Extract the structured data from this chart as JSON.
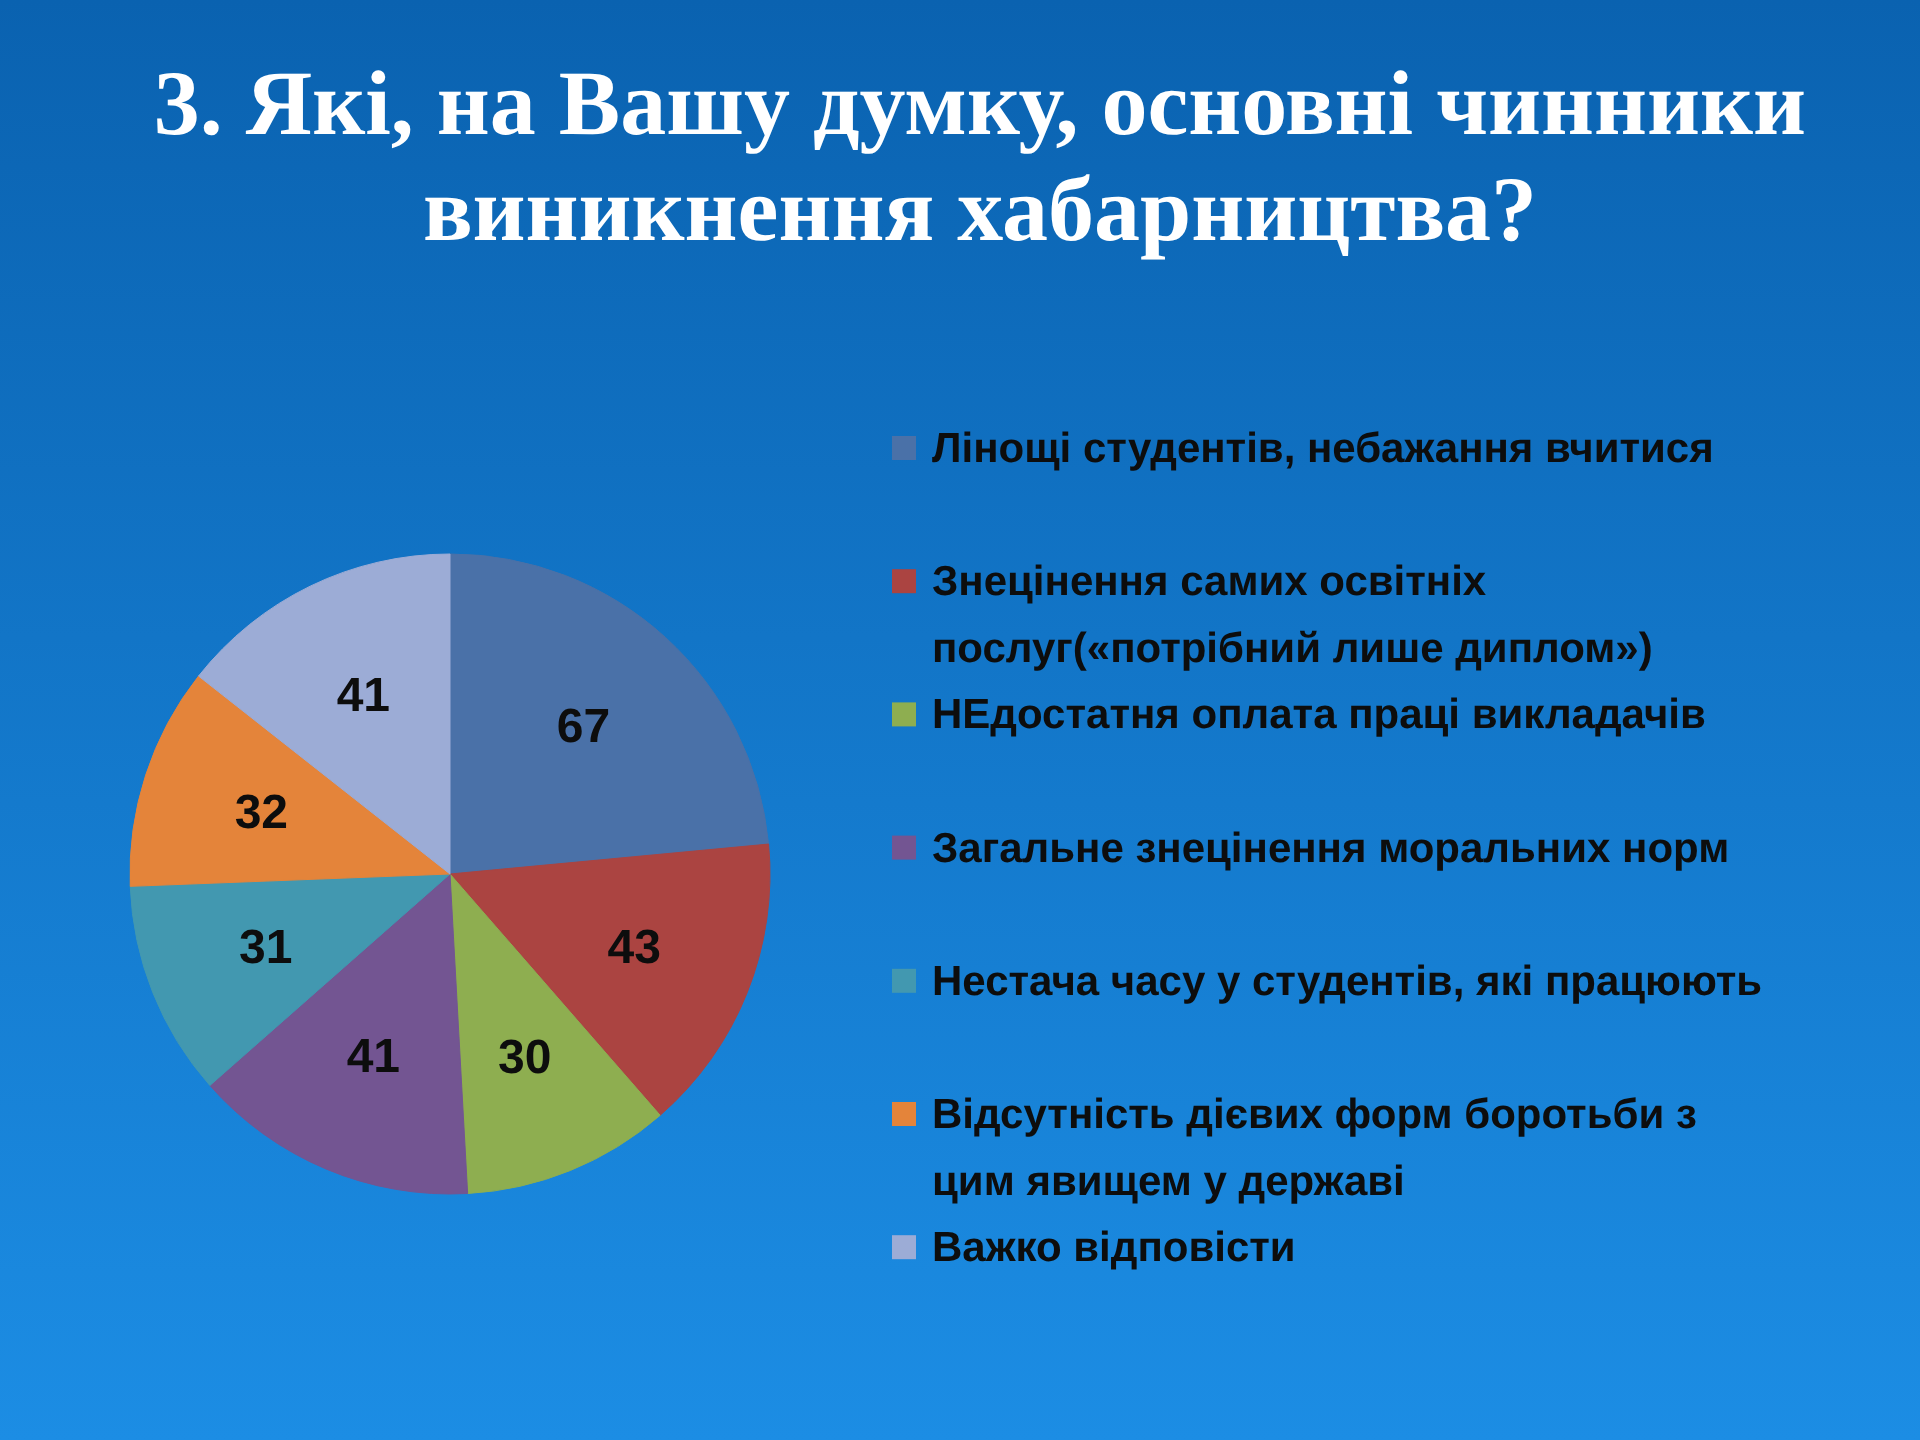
{
  "chart_data": {
    "type": "pie",
    "title": "3. Які, на Вашу думку, основні чинники виникнення хабарництва?",
    "categories": [
      "Лінощі студентів, небажання вчитися",
      "Знецінення самих освітніх послуг(«потрібний лише диплом»)",
      "НЕдостатня оплата праці  викладачів",
      "Загальне знецінення моральних норм",
      "Нестача часу у студентів, які працюють",
      "Відсутність дієвих форм боротьби з цим явищем у державі",
      "Важко відповісти"
    ],
    "values": [
      67,
      43,
      30,
      41,
      31,
      32,
      41
    ],
    "colors": [
      "#4a71a8",
      "#ab4441",
      "#8eae50",
      "#735592",
      "#4298b0",
      "#e4843a",
      "#9cacd6"
    ],
    "data_labels": true,
    "legend": "right"
  }
}
